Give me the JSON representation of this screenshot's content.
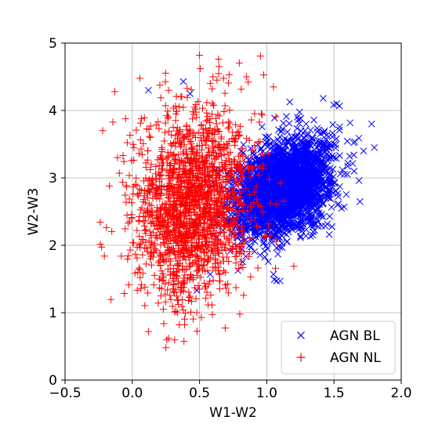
{
  "chart_data": {
    "type": "scatter",
    "title": "",
    "xlabel": "W1-W2",
    "ylabel": "W2-W3",
    "xlim": [
      -0.5,
      2.0
    ],
    "ylim": [
      0,
      5
    ],
    "xticks": [
      -0.5,
      0.0,
      0.5,
      1.0,
      1.5,
      2.0
    ],
    "xtick_labels": [
      "−0.5",
      "0.0",
      "0.5",
      "1.0",
      "1.5",
      "2.0"
    ],
    "yticks": [
      0,
      1,
      2,
      3,
      4,
      5
    ],
    "ytick_labels": [
      "0",
      "1",
      "2",
      "3",
      "4",
      "5"
    ],
    "grid": true,
    "legend_position": "bottom-right",
    "series": [
      {
        "name": "AGN BL",
        "marker": "x",
        "color": "#0000ff",
        "n_points": 3000,
        "cluster": {
          "x_center": 1.12,
          "x_std": 0.17,
          "y_center": 2.85,
          "y_std": 0.35,
          "corr": 0.35
        },
        "x_range": [
          0.15,
          1.8
        ],
        "y_range": [
          1.3,
          4.45
        ],
        "outliers": [
          [
            0.12,
            4.3
          ],
          [
            0.38,
            4.43
          ],
          [
            0.43,
            4.25
          ],
          [
            1.05,
            1.57
          ],
          [
            1.1,
            1.47
          ],
          [
            0.58,
            1.57
          ],
          [
            1.78,
            3.8
          ],
          [
            1.8,
            3.45
          ],
          [
            1.52,
            4.1
          ],
          [
            1.42,
            4.18
          ],
          [
            0.48,
            1.33
          ],
          [
            1.65,
            3.1
          ],
          [
            1.72,
            3.4
          ]
        ]
      },
      {
        "name": "AGN NL",
        "marker": "+",
        "color": "#ff0000",
        "n_points": 1800,
        "cluster": {
          "x_center": 0.45,
          "x_std": 0.22,
          "y_center": 2.6,
          "y_std": 0.7,
          "corr": 0.15
        },
        "x_range": [
          -0.25,
          1.3
        ],
        "y_range": [
          0.45,
          4.85
        ],
        "outliers": [
          [
            0.5,
            4.82
          ],
          [
            0.72,
            4.53
          ],
          [
            0.6,
            4.5
          ],
          [
            0.27,
            4.3
          ],
          [
            -0.13,
            4.28
          ],
          [
            -0.22,
            3.7
          ],
          [
            -0.17,
            2.88
          ],
          [
            0.12,
            0.72
          ],
          [
            0.25,
            0.48
          ],
          [
            0.27,
            0.62
          ],
          [
            0.48,
            1.0
          ],
          [
            0.35,
            0.82
          ],
          [
            0.88,
            1.53
          ],
          [
            0.63,
            4.45
          ],
          [
            0.85,
            4.5
          ],
          [
            -0.05,
            3.88
          ],
          [
            1.05,
            4.35
          ]
        ]
      }
    ]
  }
}
